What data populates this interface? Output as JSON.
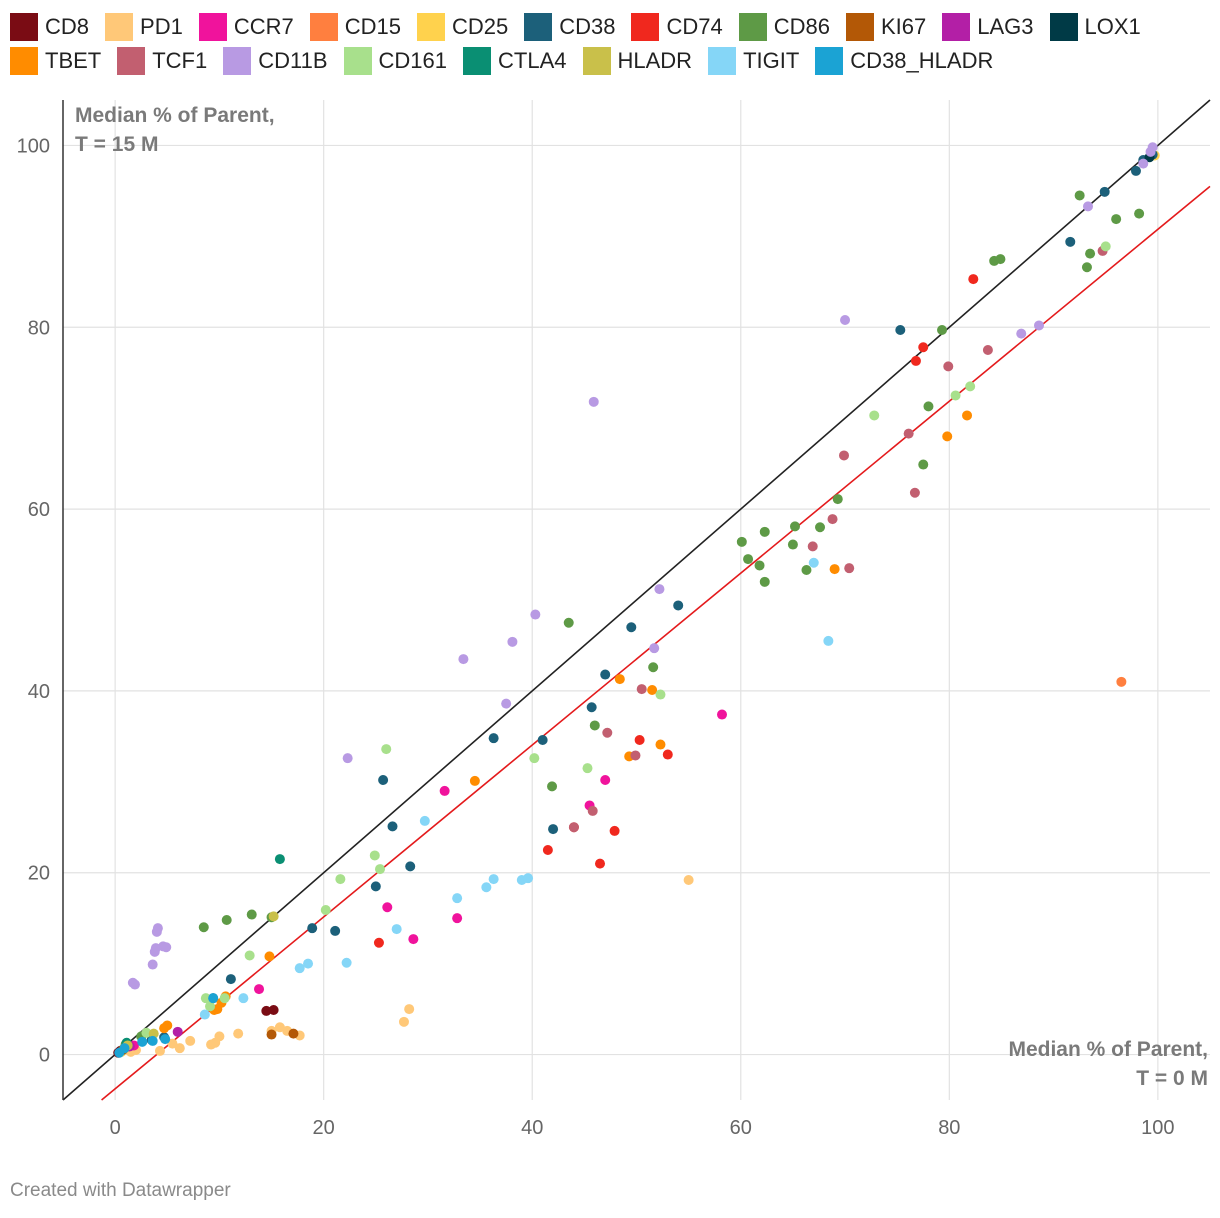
{
  "footer": "Created with Datawrapper",
  "chart_data": {
    "type": "scatter",
    "ytitle": [
      "Median % of Parent,",
      "T = 15 M"
    ],
    "xtitle": [
      "Median % of Parent,",
      "T = 0 M"
    ],
    "xlim": [
      -5,
      105
    ],
    "ylim": [
      -5,
      105
    ],
    "xticks": [
      0,
      20,
      40,
      60,
      80,
      100
    ],
    "yticks": [
      0,
      20,
      40,
      60,
      80,
      100
    ],
    "grid": true,
    "legend_position": "top",
    "reference_lines": [
      {
        "name": "identity",
        "color": "#222222",
        "points": [
          [
            -5,
            -5
          ],
          [
            105,
            105
          ]
        ]
      },
      {
        "name": "fit",
        "color": "#e41a1c",
        "points": [
          [
            -1.3,
            -5
          ],
          [
            105,
            95.5
          ]
        ]
      }
    ],
    "series": [
      {
        "name": "CD8",
        "color": "#7a0c14",
        "points": [
          [
            0.3,
            0.2
          ],
          [
            0.5,
            0.4
          ],
          [
            1.0,
            0.6
          ],
          [
            14.5,
            4.8
          ],
          [
            15.2,
            4.9
          ]
        ]
      },
      {
        "name": "PD1",
        "color": "#ffc878",
        "points": [
          [
            1.5,
            0.3
          ],
          [
            2.0,
            0.5
          ],
          [
            4.3,
            0.4
          ],
          [
            5.5,
            1.2
          ],
          [
            6.2,
            0.7
          ],
          [
            7.2,
            1.5
          ],
          [
            9.2,
            1.1
          ],
          [
            9.6,
            1.3
          ],
          [
            10.0,
            2.0
          ],
          [
            11.8,
            2.3
          ],
          [
            15.0,
            2.6
          ],
          [
            15.8,
            3.0
          ],
          [
            16.5,
            2.6
          ],
          [
            17.7,
            2.1
          ],
          [
            27.7,
            3.6
          ],
          [
            28.2,
            5.0
          ],
          [
            55.0,
            19.2
          ]
        ]
      },
      {
        "name": "CCR7",
        "color": "#f0139c",
        "points": [
          [
            1.8,
            1.0
          ],
          [
            13.8,
            7.2
          ],
          [
            31.6,
            29.0
          ],
          [
            32.8,
            15.0
          ],
          [
            26.1,
            16.2
          ],
          [
            28.6,
            12.7
          ],
          [
            45.5,
            27.4
          ],
          [
            47.0,
            30.2
          ],
          [
            58.2,
            37.4
          ]
        ]
      },
      {
        "name": "CD15",
        "color": "#ff7f3f",
        "points": [
          [
            96.5,
            41.0
          ]
        ]
      },
      {
        "name": "CD25",
        "color": "#ffd24d",
        "points": [
          [
            0.6,
            0.3
          ],
          [
            99.7,
            98.9
          ]
        ]
      },
      {
        "name": "CD38",
        "color": "#1c607a",
        "points": [
          [
            0.7,
            0.5
          ],
          [
            1.2,
            1.0
          ],
          [
            3.5,
            1.6
          ],
          [
            4.7,
            1.9
          ],
          [
            9.4,
            6.2
          ],
          [
            11.1,
            8.3
          ],
          [
            18.9,
            13.9
          ],
          [
            21.1,
            13.6
          ],
          [
            25.0,
            18.5
          ],
          [
            25.7,
            30.2
          ],
          [
            26.6,
            25.1
          ],
          [
            28.3,
            20.7
          ],
          [
            36.3,
            34.8
          ],
          [
            41.0,
            34.6
          ],
          [
            42.0,
            24.8
          ],
          [
            45.7,
            38.2
          ],
          [
            47.0,
            41.8
          ],
          [
            49.5,
            47.0
          ],
          [
            54.0,
            49.4
          ],
          [
            75.3,
            79.7
          ],
          [
            91.6,
            89.4
          ],
          [
            94.9,
            94.9
          ],
          [
            97.9,
            97.2
          ],
          [
            98.6,
            98.4
          ],
          [
            99.5,
            99.0
          ]
        ]
      },
      {
        "name": "CD74",
        "color": "#f0281e",
        "points": [
          [
            25.3,
            12.3
          ],
          [
            41.5,
            22.5
          ],
          [
            44.0,
            25.0
          ],
          [
            46.5,
            21.0
          ],
          [
            47.9,
            24.6
          ],
          [
            50.3,
            34.6
          ],
          [
            53.0,
            33.0
          ],
          [
            76.8,
            76.3
          ],
          [
            77.5,
            77.8
          ],
          [
            82.3,
            85.3
          ]
        ]
      },
      {
        "name": "CD86",
        "color": "#5e9a46",
        "points": [
          [
            1.0,
            1.1
          ],
          [
            2.5,
            2.0
          ],
          [
            8.5,
            14.0
          ],
          [
            10.7,
            14.8
          ],
          [
            13.1,
            15.4
          ],
          [
            15.0,
            15.1
          ],
          [
            41.9,
            29.5
          ],
          [
            43.5,
            47.5
          ],
          [
            46.0,
            36.2
          ],
          [
            51.6,
            42.6
          ],
          [
            60.1,
            56.4
          ],
          [
            60.7,
            54.5
          ],
          [
            61.8,
            53.8
          ],
          [
            62.3,
            57.5
          ],
          [
            62.3,
            52.0
          ],
          [
            65.0,
            56.1
          ],
          [
            65.2,
            58.1
          ],
          [
            66.3,
            53.3
          ],
          [
            67.6,
            58.0
          ],
          [
            69.3,
            61.1
          ],
          [
            77.5,
            64.9
          ],
          [
            78.0,
            71.3
          ],
          [
            79.3,
            79.7
          ],
          [
            84.3,
            87.3
          ],
          [
            84.9,
            87.5
          ],
          [
            92.5,
            94.5
          ],
          [
            93.2,
            86.6
          ],
          [
            93.5,
            88.1
          ],
          [
            96.0,
            91.9
          ],
          [
            98.2,
            92.5
          ]
        ]
      },
      {
        "name": "KI67",
        "color": "#b35806",
        "points": [
          [
            0.8,
            0.6
          ],
          [
            1.3,
            0.9
          ],
          [
            15.0,
            2.2
          ],
          [
            17.1,
            2.3
          ]
        ]
      },
      {
        "name": "LAG3",
        "color": "#b31fa6",
        "points": [
          [
            1.4,
            0.9
          ],
          [
            6.0,
            2.5
          ]
        ]
      },
      {
        "name": "LOX1",
        "color": "#003a46",
        "points": [
          [
            99.2,
            98.7
          ]
        ]
      },
      {
        "name": "TBET",
        "color": "#ff8c00",
        "points": [
          [
            4.7,
            2.9
          ],
          [
            5.0,
            3.2
          ],
          [
            9.5,
            4.9
          ],
          [
            9.8,
            5.0
          ],
          [
            10.2,
            5.7
          ],
          [
            10.6,
            6.4
          ],
          [
            14.8,
            10.8
          ],
          [
            34.5,
            30.1
          ],
          [
            48.4,
            41.3
          ],
          [
            49.3,
            32.8
          ],
          [
            51.5,
            40.1
          ],
          [
            52.3,
            34.1
          ],
          [
            69.0,
            53.4
          ],
          [
            79.8,
            68.0
          ],
          [
            81.7,
            70.3
          ]
        ]
      },
      {
        "name": "TCF1",
        "color": "#c25f70",
        "points": [
          [
            44.0,
            25.0
          ],
          [
            45.8,
            26.8
          ],
          [
            47.2,
            35.4
          ],
          [
            49.9,
            32.9
          ],
          [
            50.5,
            40.2
          ],
          [
            66.9,
            55.9
          ],
          [
            68.8,
            58.9
          ],
          [
            69.9,
            65.9
          ],
          [
            70.4,
            53.5
          ],
          [
            76.1,
            68.3
          ],
          [
            76.7,
            61.8
          ],
          [
            79.9,
            75.7
          ],
          [
            83.7,
            77.5
          ],
          [
            94.7,
            88.4
          ]
        ]
      },
      {
        "name": "CD11B",
        "color": "#b89ae3",
        "points": [
          [
            1.7,
            7.9
          ],
          [
            1.9,
            7.7
          ],
          [
            3.6,
            9.9
          ],
          [
            3.8,
            11.3
          ],
          [
            3.9,
            11.7
          ],
          [
            4.0,
            13.5
          ],
          [
            4.1,
            13.9
          ],
          [
            4.6,
            11.9
          ],
          [
            4.9,
            11.8
          ],
          [
            22.3,
            32.6
          ],
          [
            33.4,
            43.5
          ],
          [
            37.5,
            38.6
          ],
          [
            38.1,
            45.4
          ],
          [
            40.3,
            48.4
          ],
          [
            45.9,
            71.8
          ],
          [
            51.7,
            44.7
          ],
          [
            52.2,
            51.2
          ],
          [
            70.0,
            80.8
          ],
          [
            86.9,
            79.3
          ],
          [
            88.6,
            80.2
          ],
          [
            93.3,
            93.3
          ],
          [
            98.6,
            98.0
          ],
          [
            99.3,
            99.3
          ],
          [
            99.5,
            99.8
          ]
        ]
      },
      {
        "name": "CD161",
        "color": "#a8e08c",
        "points": [
          [
            3.0,
            2.4
          ],
          [
            8.7,
            6.2
          ],
          [
            9.1,
            5.3
          ],
          [
            10.5,
            6.2
          ],
          [
            12.9,
            10.9
          ],
          [
            20.2,
            15.9
          ],
          [
            21.6,
            19.3
          ],
          [
            24.9,
            21.9
          ],
          [
            25.4,
            20.4
          ],
          [
            26.0,
            33.6
          ],
          [
            40.2,
            32.6
          ],
          [
            45.3,
            31.5
          ],
          [
            52.3,
            39.6
          ],
          [
            72.8,
            70.3
          ],
          [
            80.6,
            72.5
          ],
          [
            82.0,
            73.5
          ],
          [
            95.0,
            88.9
          ]
        ]
      },
      {
        "name": "CTLA4",
        "color": "#0a8f73",
        "points": [
          [
            1.1,
            1.3
          ],
          [
            15.8,
            21.5
          ]
        ]
      },
      {
        "name": "HLADR",
        "color": "#c9c04a",
        "points": [
          [
            1.2,
            1.0
          ],
          [
            3.7,
            2.3
          ],
          [
            15.2,
            15.2
          ]
        ]
      },
      {
        "name": "TIGIT",
        "color": "#85d6f7",
        "points": [
          [
            8.6,
            4.4
          ],
          [
            12.3,
            6.2
          ],
          [
            17.7,
            9.5
          ],
          [
            18.5,
            10.0
          ],
          [
            22.2,
            10.1
          ],
          [
            27.0,
            13.8
          ],
          [
            29.7,
            25.7
          ],
          [
            32.8,
            17.2
          ],
          [
            35.6,
            18.4
          ],
          [
            36.3,
            19.3
          ],
          [
            39.0,
            19.2
          ],
          [
            39.6,
            19.4
          ],
          [
            67.0,
            54.1
          ],
          [
            68.4,
            45.5
          ]
        ]
      },
      {
        "name": "CD38_HLADR",
        "color": "#1ba3d4",
        "points": [
          [
            0.4,
            0.2
          ],
          [
            0.9,
            0.7
          ],
          [
            2.6,
            1.4
          ],
          [
            3.6,
            1.5
          ],
          [
            4.8,
            1.7
          ],
          [
            9.4,
            6.2
          ]
        ]
      }
    ]
  }
}
